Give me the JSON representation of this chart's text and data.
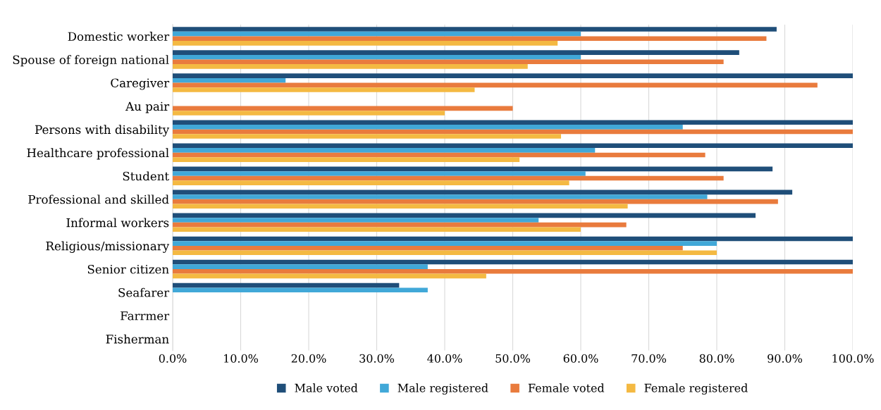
{
  "chart_data": {
    "type": "bar",
    "orientation": "horizontal",
    "categories": [
      "Domestic worker",
      "Spouse of foreign national",
      "Caregiver",
      "Au pair",
      "Persons with disability",
      "Healthcare professional",
      "Student",
      "Professional and skilled",
      "Informal workers",
      "Religious/missionary",
      "Senior citizen",
      "Seafarer",
      "Farrmer",
      "Fisherman"
    ],
    "series": [
      {
        "name": "Male voted",
        "color": "#1f4e79",
        "values": [
          88.8,
          83.3,
          100,
          null,
          100,
          100,
          88.2,
          91.1,
          85.7,
          100,
          100,
          33.3,
          null,
          null
        ]
      },
      {
        "name": "Male registered",
        "color": "#41a8d8",
        "values": [
          60,
          60,
          16.6,
          null,
          75,
          62.1,
          60.7,
          78.6,
          53.8,
          80,
          37.5,
          37.5,
          null,
          null
        ]
      },
      {
        "name": "Female voted",
        "color": "#e97b3d",
        "values": [
          87.3,
          81.0,
          94.8,
          50,
          100,
          78.3,
          81.0,
          89.0,
          66.7,
          75,
          100,
          null,
          null,
          null
        ]
      },
      {
        "name": "Female registered",
        "color": "#f4b942",
        "values": [
          56.6,
          52.2,
          44.4,
          40,
          57.1,
          51.0,
          58.3,
          66.9,
          60,
          80,
          46.1,
          null,
          null,
          null
        ]
      }
    ],
    "xlim": [
      0,
      100
    ],
    "xticks": [
      {
        "value": 0,
        "label": "0.0%"
      },
      {
        "value": 10,
        "label": "10.0%"
      },
      {
        "value": 20,
        "label": "20.0%"
      },
      {
        "value": 30,
        "label": "30.0%"
      },
      {
        "value": 40,
        "label": "40.0%"
      },
      {
        "value": 50,
        "label": "50.0%"
      },
      {
        "value": 60,
        "label": "60.0%"
      },
      {
        "value": 70,
        "label": "70.0%"
      },
      {
        "value": 80,
        "label": "80.0%"
      },
      {
        "value": 90,
        "label": "90.0%"
      },
      {
        "value": 100,
        "label": "100.0%"
      }
    ],
    "grid": "x",
    "legend": "bottom"
  }
}
